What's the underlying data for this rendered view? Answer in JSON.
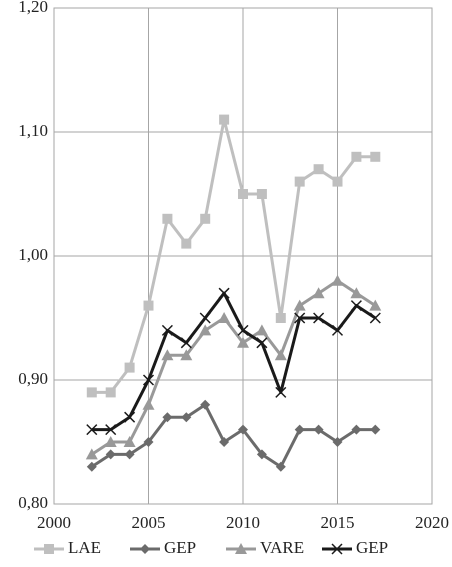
{
  "chart_data": {
    "type": "line",
    "x": [
      2002,
      2003,
      2004,
      2005,
      2006,
      2007,
      2008,
      2009,
      2010,
      2011,
      2012,
      2013,
      2014,
      2015,
      2016,
      2017
    ],
    "series": [
      {
        "name": "LAE",
        "color": "#bfbfbf",
        "marker": "square",
        "values": [
          0.89,
          0.89,
          0.91,
          0.96,
          1.03,
          1.01,
          1.03,
          1.11,
          1.05,
          1.05,
          0.95,
          1.06,
          1.07,
          1.06,
          1.08,
          1.08
        ]
      },
      {
        "name": "GEP",
        "color": "#6b6b6b",
        "marker": "diamond",
        "values": [
          0.83,
          0.84,
          0.84,
          0.85,
          0.87,
          0.87,
          0.88,
          0.85,
          0.86,
          0.84,
          0.83,
          0.86,
          0.86,
          0.85,
          0.86,
          0.86
        ]
      },
      {
        "name": "VARE",
        "color": "#999999",
        "marker": "triangle",
        "values": [
          0.84,
          0.85,
          0.85,
          0.88,
          0.92,
          0.92,
          0.94,
          0.95,
          0.93,
          0.94,
          0.92,
          0.96,
          0.97,
          0.98,
          0.97,
          0.96
        ]
      },
      {
        "name": "GEP",
        "color": "#1a1a1a",
        "marker": "x",
        "values": [
          0.86,
          0.86,
          0.87,
          0.9,
          0.94,
          0.93,
          0.95,
          0.97,
          0.94,
          0.93,
          0.89,
          0.95,
          0.95,
          0.94,
          0.96,
          0.95
        ]
      }
    ],
    "xlim": [
      2000,
      2020
    ],
    "xticks": [
      2000,
      2005,
      2010,
      2015,
      2020
    ],
    "ylim": [
      0.8,
      1.2
    ],
    "yticks": [
      {
        "value": 0.8,
        "label": "0,80"
      },
      {
        "value": 0.9,
        "label": "0,90"
      },
      {
        "value": 1.0,
        "label": "1,00"
      },
      {
        "value": 1.1,
        "label": "1,10"
      },
      {
        "value": 1.2,
        "label": "1,20"
      }
    ],
    "grid": true,
    "legend": "bottom"
  }
}
